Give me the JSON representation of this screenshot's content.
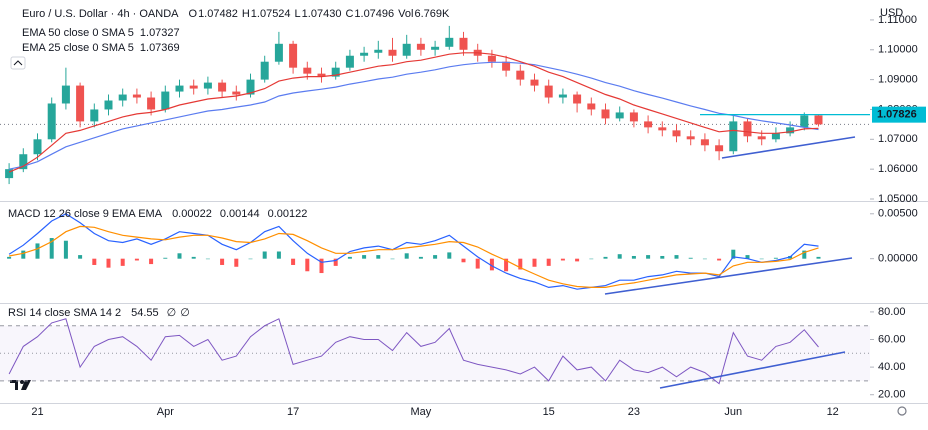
{
  "header": {
    "symbol": "Euro / U.S. Dollar · 4h · OANDA",
    "currency": "USD",
    "ohlc": [
      {
        "key": "O",
        "value": "1.07482"
      },
      {
        "key": "H",
        "value": "1.07524"
      },
      {
        "key": "L",
        "value": "1.07430"
      },
      {
        "key": "C",
        "value": "1.07496"
      },
      {
        "key": "Vol",
        "value": "6.769K"
      }
    ]
  },
  "chart_data": [
    {
      "type": "candlestick",
      "categories": [
        null,
        null,
        "21",
        null,
        null,
        null,
        null,
        null,
        null,
        null,
        null,
        "Apr",
        null,
        null,
        null,
        null,
        null,
        null,
        null,
        null,
        "17",
        null,
        null,
        null,
        null,
        null,
        null,
        null,
        null,
        "May",
        null,
        null,
        null,
        null,
        null,
        null,
        null,
        null,
        "15",
        null,
        null,
        null,
        null,
        null,
        "23",
        null,
        null,
        null,
        null,
        null,
        null,
        "Jun",
        null,
        null,
        null,
        null,
        null,
        null,
        "12"
      ],
      "open": [
        1.057,
        1.06,
        1.065,
        1.07,
        1.082,
        1.088,
        1.076,
        1.08,
        1.083,
        1.085,
        1.084,
        1.08,
        1.086,
        1.088,
        1.087,
        1.089,
        1.086,
        1.085,
        1.09,
        1.096,
        1.102,
        1.094,
        1.092,
        1.091,
        1.094,
        1.098,
        1.099,
        1.1,
        1.098,
        1.102,
        1.1,
        1.101,
        1.104,
        1.1,
        1.098,
        1.096,
        1.093,
        1.09,
        1.088,
        1.084,
        1.085,
        1.082,
        1.08,
        1.077,
        1.079,
        1.076,
        1.074,
        1.073,
        1.071,
        1.07,
        1.068,
        1.066,
        1.076,
        1.071,
        1.07,
        1.072,
        1.074,
        1.078,
        null
      ],
      "high": [
        1.062,
        1.067,
        1.072,
        1.084,
        1.094,
        1.089,
        1.082,
        1.085,
        1.087,
        1.087,
        1.086,
        1.088,
        1.09,
        1.09,
        1.091,
        1.09,
        1.088,
        1.092,
        1.098,
        1.106,
        1.103,
        1.096,
        1.094,
        1.096,
        1.1,
        1.101,
        1.103,
        1.104,
        1.105,
        1.104,
        1.103,
        1.108,
        1.106,
        1.102,
        1.1,
        1.098,
        1.095,
        1.092,
        1.09,
        1.087,
        1.086,
        1.084,
        1.082,
        1.081,
        1.08,
        1.078,
        1.076,
        1.075,
        1.073,
        1.072,
        1.07,
        1.078,
        1.077,
        1.073,
        1.074,
        1.076,
        1.079,
        1.0783,
        null
      ],
      "low": [
        1.055,
        1.059,
        1.063,
        1.069,
        1.08,
        1.074,
        1.074,
        1.078,
        1.081,
        1.082,
        1.078,
        1.079,
        1.084,
        1.085,
        1.085,
        1.084,
        1.083,
        1.084,
        1.089,
        1.095,
        1.092,
        1.09,
        1.089,
        1.09,
        1.093,
        1.096,
        1.097,
        1.096,
        1.097,
        1.098,
        1.098,
        1.1,
        1.098,
        1.096,
        1.094,
        1.091,
        1.088,
        1.086,
        1.082,
        1.082,
        1.079,
        1.078,
        1.075,
        1.076,
        1.074,
        1.072,
        1.071,
        1.069,
        1.068,
        1.066,
        1.063,
        1.065,
        1.069,
        1.068,
        1.069,
        1.071,
        1.073,
        1.0743,
        null
      ],
      "close": [
        1.06,
        1.065,
        1.07,
        1.082,
        1.088,
        1.076,
        1.08,
        1.083,
        1.085,
        1.084,
        1.08,
        1.086,
        1.088,
        1.087,
        1.089,
        1.086,
        1.085,
        1.09,
        1.096,
        1.102,
        1.094,
        1.092,
        1.091,
        1.094,
        1.098,
        1.099,
        1.1,
        1.098,
        1.102,
        1.1,
        1.101,
        1.104,
        1.1,
        1.098,
        1.096,
        1.093,
        1.09,
        1.088,
        1.084,
        1.085,
        1.082,
        1.08,
        1.077,
        1.079,
        1.076,
        1.074,
        1.073,
        1.071,
        1.07,
        1.068,
        1.066,
        1.076,
        1.071,
        1.07,
        1.072,
        1.074,
        1.078,
        1.075,
        null
      ],
      "up_color": "#26a69a",
      "down_color": "#ef5350",
      "series": [
        {
          "name": "EMA 50 close 0 SMA 5",
          "value_label": "1.07327",
          "color": "#5b7cf0",
          "values": [
            1.06,
            1.061,
            1.0625,
            1.065,
            1.0675,
            1.069,
            1.0705,
            1.072,
            1.0735,
            1.0745,
            1.0755,
            1.0765,
            1.0775,
            1.0785,
            1.0795,
            1.08,
            1.0808,
            1.0815,
            1.0825,
            1.0845,
            1.0855,
            1.0862,
            1.0868,
            1.0875,
            1.0885,
            1.0893,
            1.0902,
            1.0908,
            1.0918,
            1.0925,
            1.0933,
            1.0943,
            1.095,
            1.0955,
            1.0958,
            1.0958,
            1.0955,
            1.095,
            1.094,
            1.093,
            1.0918,
            1.0905,
            1.089,
            1.0878,
            1.0863,
            1.085,
            1.0838,
            1.0825,
            1.0812,
            1.08,
            1.0787,
            1.078,
            1.077,
            1.0762,
            1.0755,
            1.0748,
            1.074,
            1.0733,
            null
          ]
        },
        {
          "name": "EMA 25 close 0 SMA 5",
          "value_label": "1.07369",
          "color": "#e53935",
          "values": [
            1.059,
            1.061,
            1.064,
            1.068,
            1.072,
            1.073,
            1.0745,
            1.076,
            1.0775,
            1.0785,
            1.079,
            1.08,
            1.0815,
            1.0825,
            1.0835,
            1.084,
            1.0845,
            1.0855,
            1.087,
            1.0895,
            1.0905,
            1.091,
            1.091,
            1.0915,
            1.0925,
            1.0935,
            1.0945,
            1.095,
            1.096,
            1.0965,
            1.0975,
            1.0985,
            1.099,
            1.099,
            1.0985,
            1.0975,
            1.096,
            1.0945,
            1.0925,
            1.091,
            1.089,
            1.087,
            1.085,
            1.0835,
            1.0815,
            1.08,
            1.0785,
            1.077,
            1.0755,
            1.074,
            1.0725,
            1.073,
            1.0725,
            1.072,
            1.072,
            1.0725,
            1.0735,
            1.0737,
            null
          ]
        }
      ],
      "price_label": {
        "value": 1.07826,
        "label": "1.07826"
      },
      "price_label_color": "#00bcd4",
      "ylim": [
        1.05,
        1.115
      ],
      "yticks": [
        {
          "value": 1.05,
          "label": "1.05000"
        },
        {
          "value": 1.06,
          "label": "1.06000"
        },
        {
          "value": 1.07,
          "label": "1.07000"
        },
        {
          "value": 1.08,
          "label": "1.08000"
        },
        {
          "value": 1.09,
          "label": "1.09000"
        },
        {
          "value": 1.1,
          "label": "1.10000"
        },
        {
          "value": 1.11,
          "label": "1.11000"
        }
      ]
    },
    {
      "type": "macd",
      "title": "MACD 12 26 close 9 EMA EMA",
      "histogram": {
        "value_label": "0.00022",
        "up_color": "#26a69a",
        "down_color": "#ff5252",
        "values": [
          0.0002,
          0.0009,
          0.0017,
          0.0023,
          0.002,
          0.0004,
          -0.0007,
          -0.001,
          -0.0008,
          -0.0002,
          -0.0006,
          0.0001,
          0.0006,
          0.0002,
          0.0,
          -0.0007,
          -0.0009,
          0.0,
          0.0008,
          0.0008,
          -0.0007,
          -0.0014,
          -0.0016,
          -0.0008,
          0.0002,
          0.0004,
          0.0004,
          0.0,
          0.0006,
          0.0002,
          0.0004,
          0.0007,
          -0.0004,
          -0.0011,
          -0.0013,
          -0.0014,
          -0.0012,
          -0.0009,
          -0.0008,
          -0.0002,
          -0.0003,
          0.0,
          0.0002,
          0.0005,
          0.0003,
          0.0004,
          0.0003,
          0.0004,
          0.0001,
          0.0,
          -0.0002,
          0.001,
          0.0004,
          0.0,
          0.0001,
          0.0003,
          0.0009,
          0.0002,
          null
        ]
      },
      "series": [
        {
          "value_label": "0.00144",
          "color": "#2962ff",
          "values": [
            0.0005,
            0.0015,
            0.0028,
            0.0042,
            0.005,
            0.004,
            0.0028,
            0.002,
            0.0018,
            0.0022,
            0.0016,
            0.0022,
            0.003,
            0.0028,
            0.0026,
            0.0016,
            0.001,
            0.0018,
            0.003,
            0.0036,
            0.002,
            0.0006,
            -0.0004,
            -0.0002,
            0.0008,
            0.0012,
            0.0014,
            0.001,
            0.0018,
            0.0016,
            0.002,
            0.0026,
            0.0014,
            0.0002,
            -0.0008,
            -0.0016,
            -0.0022,
            -0.0026,
            -0.0032,
            -0.003,
            -0.0034,
            -0.0032,
            -0.003,
            -0.0024,
            -0.0024,
            -0.002,
            -0.0018,
            -0.0014,
            -0.0016,
            -0.0016,
            -0.002,
            0.0002,
            0.0,
            -0.0004,
            -0.0002,
            0.0002,
            0.0016,
            0.0014,
            null
          ]
        },
        {
          "value_label": "0.00122",
          "color": "#ff8f00",
          "values": [
            0.0003,
            0.0006,
            0.0011,
            0.0019,
            0.003,
            0.0036,
            0.0035,
            0.003,
            0.0026,
            0.0024,
            0.0022,
            0.0021,
            0.0024,
            0.0026,
            0.0026,
            0.0023,
            0.0019,
            0.0018,
            0.0022,
            0.0028,
            0.0027,
            0.002,
            0.0012,
            0.0006,
            0.0006,
            0.0008,
            0.001,
            0.001,
            0.0012,
            0.0014,
            0.0016,
            0.0019,
            0.0018,
            0.0013,
            0.0005,
            -0.0002,
            -0.001,
            -0.0017,
            -0.0024,
            -0.0028,
            -0.0031,
            -0.0032,
            -0.0032,
            -0.0029,
            -0.0027,
            -0.0024,
            -0.0021,
            -0.0018,
            -0.0017,
            -0.0016,
            -0.0018,
            -0.0008,
            -0.0004,
            -0.0004,
            -0.0003,
            -0.0001,
            0.0007,
            0.0012,
            null
          ]
        }
      ],
      "ylim": [
        -0.0046,
        0.0062
      ],
      "yticks": [
        {
          "value": 0.0,
          "label": "0.00000"
        },
        {
          "value": 0.005,
          "label": "0.00500"
        }
      ]
    },
    {
      "type": "line",
      "title": "RSI 14 close SMA 14 2",
      "sma_labels": [
        "∅",
        "∅"
      ],
      "series": [
        {
          "value_label": "54.55",
          "color": "#7e57c2",
          "values": [
            35,
            55,
            62,
            72,
            75,
            40,
            55,
            60,
            62,
            55,
            45,
            62,
            63,
            55,
            60,
            45,
            48,
            62,
            70,
            75,
            42,
            45,
            48,
            58,
            62,
            60,
            60,
            52,
            65,
            55,
            58,
            68,
            45,
            42,
            40,
            38,
            35,
            40,
            30,
            48,
            38,
            40,
            30,
            45,
            38,
            36,
            40,
            33,
            40,
            36,
            28,
            65,
            48,
            45,
            55,
            58,
            67,
            54.55,
            null
          ]
        }
      ],
      "levels": [
        70,
        50,
        30
      ],
      "ylim": [
        14,
        85
      ],
      "yticks": [
        {
          "value": 20,
          "label": "20.00"
        },
        {
          "value": 40,
          "label": "40.00"
        },
        {
          "value": 60,
          "label": "60.00"
        },
        {
          "value": 80,
          "label": "80.00"
        }
      ]
    }
  ]
}
